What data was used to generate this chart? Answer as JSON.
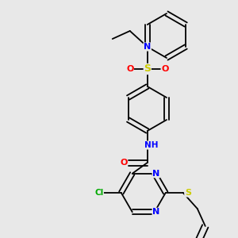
{
  "background_color": "#e8e8e8",
  "bond_color": "#000000",
  "atom_colors": {
    "N": "#0000ff",
    "O": "#ff0000",
    "S": "#cccc00",
    "Cl": "#00aa00",
    "H": "#008080",
    "C": "#000000"
  },
  "figsize": [
    3.0,
    3.0
  ],
  "dpi": 100
}
